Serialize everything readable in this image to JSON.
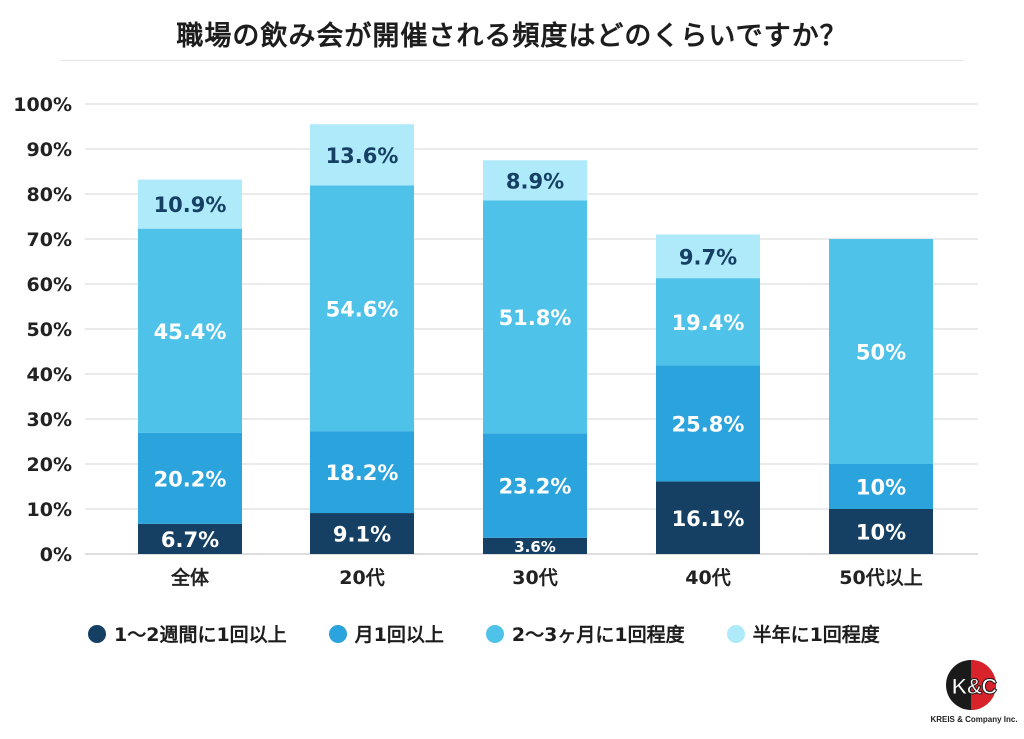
{
  "title": "職場の飲み会が開催される頻度はどのくらいですか？",
  "chart_data": {
    "type": "bar",
    "stacked": true,
    "categories": [
      "全体",
      "20代",
      "30代",
      "40代",
      "50代以上"
    ],
    "ylim": [
      0,
      100
    ],
    "yticks": [
      "0%",
      "10%",
      "20%",
      "30%",
      "40%",
      "50%",
      "60%",
      "70%",
      "80%",
      "90%",
      "100%"
    ],
    "grid": true,
    "legend_position": "bottom",
    "series": [
      {
        "name": "1〜2週間に1回以上",
        "color": "#153f63",
        "values": [
          6.7,
          9.1,
          3.6,
          16.1,
          10
        ],
        "labels": [
          "6.7%",
          "9.1%",
          "3.6%",
          "16.1%",
          "10%"
        ]
      },
      {
        "name": "月1回以上",
        "color": "#2ba3dc",
        "values": [
          20.2,
          18.2,
          23.2,
          25.8,
          10
        ],
        "labels": [
          "20.2%",
          "18.2%",
          "23.2%",
          "25.8%",
          "10%"
        ]
      },
      {
        "name": "2〜3ヶ月に1回程度",
        "color": "#4fc2ea",
        "values": [
          45.4,
          54.6,
          51.8,
          19.4,
          50
        ],
        "labels": [
          "45.4%",
          "54.6%",
          "51.8%",
          "19.4%",
          "50%"
        ]
      },
      {
        "name": "半年に1回程度",
        "color": "#aeeafa",
        "values": [
          10.9,
          13.6,
          8.9,
          9.7,
          0
        ],
        "labels": [
          "10.9%",
          "13.6%",
          "8.9%",
          "9.7%",
          ""
        ]
      }
    ]
  },
  "logo": {
    "mark": "K&C",
    "text": "KREIS & Company Inc."
  }
}
